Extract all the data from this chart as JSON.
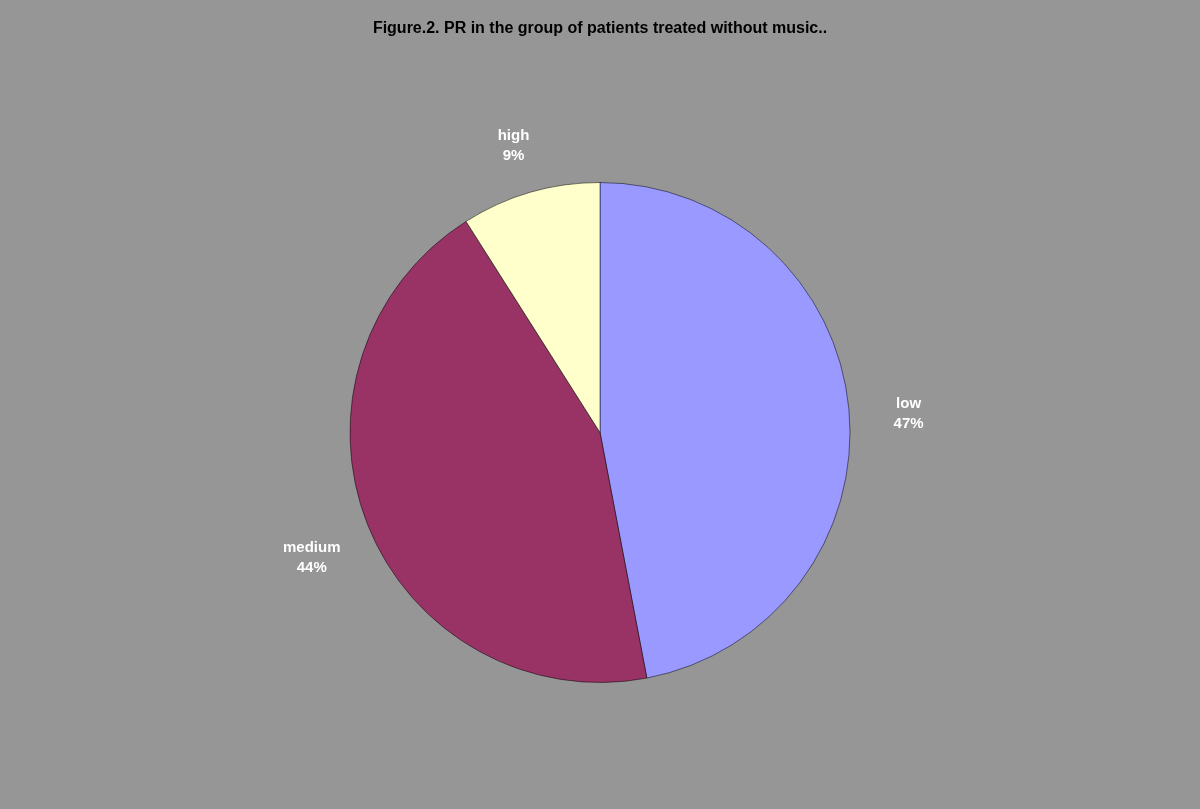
{
  "chart_data": {
    "type": "pie",
    "title": "Figure.2. PR in the group of patients treated without music..",
    "categories": [
      "low",
      "medium",
      "high"
    ],
    "values": [
      47,
      44,
      9
    ],
    "value_labels": [
      "47%",
      "44%",
      "9%"
    ],
    "colors": [
      "#9999ff",
      "#993366",
      "#ffffcc"
    ],
    "legend": false
  }
}
